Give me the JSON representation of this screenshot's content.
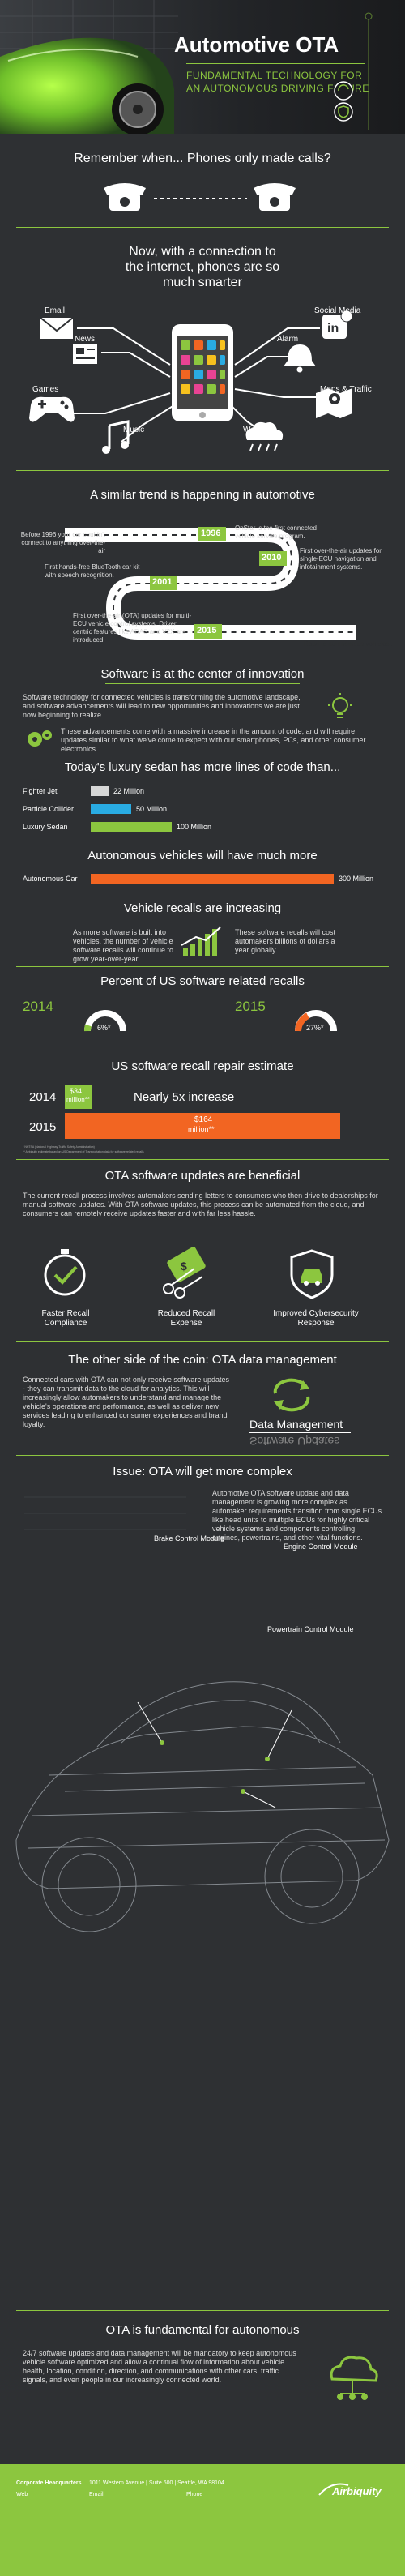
{
  "hero": {
    "title": "Automotive OTA",
    "subtitle_line1": "FUNDAMENTAL TECHNOLOGY FOR",
    "subtitle_line2": "AN AUTONOMOUS DRIVING FUTURE",
    "icons": [
      "refresh-check-icon",
      "shield-check-icon",
      "cloud-upload-icon",
      "car-icon"
    ]
  },
  "phones": {
    "title": "Remember when... Phones only made calls?"
  },
  "smart": {
    "title_line1": "Now, with a connection to",
    "title_line2": "the internet, phones are so",
    "title_line3": "much smarter",
    "labels": {
      "email": "Email",
      "news": "News",
      "games": "Games",
      "music": "Music",
      "social": "Social Media",
      "alarm": "Alarm",
      "maps": "Maps & Traffic",
      "weather": "Weather"
    }
  },
  "trend": {
    "title": "A similar trend is happening in automotive",
    "before": "Before 1996 your car couldn't connect to anything over-the-air",
    "y1996": "1996",
    "t1996": "OnStar is the first connected vehicle service program.",
    "y2001": "2001",
    "t2001": "First hands-free BlueTooth car kit with speech recognition.",
    "y2010": "2010",
    "t2010": "First over-the-air updates for single-ECU navigation and infotainment systems.",
    "y2015": "2015",
    "t2015": "First over-the-air (OTA) updates for multi-ECU vehicle control systems. Driver centric features like ADAS and V2X are introduced.",
    "road": "Road to autonomous vehicles..."
  },
  "innovation": {
    "title": "Software is at the center of innovation",
    "p1": "Software technology for connected vehicles is transforming the automotive landscape, and software advancements will lead to new opportunities and innovations we are just now beginning to realize.",
    "p2": "These advancements come with a massive increase in the amount of code, and will require updates similar to what we've come to expect with our smartphones, PCs, and other consumer electronics."
  },
  "lines": {
    "title": "Today's luxury sedan has more lines of code than...",
    "rows": [
      {
        "label": "Fighter Jet",
        "value": "22 Million"
      },
      {
        "label": "Particle Collider",
        "value": "50 Million"
      },
      {
        "label": "Luxury Sedan",
        "value": "100 Million"
      }
    ]
  },
  "autonomous": {
    "title": "Autonomous vehicles will have much more",
    "label": "Autonomous Car",
    "value": "300 Million"
  },
  "recalls": {
    "title": "Vehicle recalls are increasing",
    "left": "As more software is built into vehicles, the number of vehicle software recalls will continue to grow year-over-year",
    "right": "These software recalls will cost automakers billions of dollars a year globally"
  },
  "percent": {
    "title": "Percent of US software related recalls",
    "y2014": "2014",
    "v2014": "6%*",
    "y2015": "2015",
    "v2015": "27%*"
  },
  "repair": {
    "title": "US software recall repair estimate",
    "y2014": "2014",
    "v2014a": "$34",
    "v2014b": "million**",
    "mid": "Nearly 5x increase",
    "y2015": "2015",
    "v2015a": "$164",
    "v2015b": "million**",
    "foot1": "* NHTSA (National Highway Traffic Safety Administration)",
    "foot2": "** Airbiquity estimate based on US Department of Transportation data for software related recalls"
  },
  "beneficial": {
    "title": "OTA software updates are beneficial",
    "p": "The current recall process involves automakers sending letters to consumers who then drive to dealerships for manual software updates. With OTA software updates, this process can be automated from the cloud, and consumers can remotely receive updates faster and with far less hassle.",
    "b1a": "Faster Recall",
    "b1b": "Compliance",
    "b2a": "Reduced Recall",
    "b2b": "Expense",
    "b3a": "Improved Cybersecurity",
    "b3b": "Response"
  },
  "datamgmt": {
    "title": "The other side of the coin: OTA data management",
    "p": "Connected cars with OTA can not only receive software updates - they can transmit data to the cloud for analytics. This will increasingly allow automakers to understand and manage the vehicle's operations and performance, as well as deliver new services leading to enhanced consumer experiences and brand loyalty.",
    "label": "Data Management",
    "label_flip": "Software Updates"
  },
  "complex": {
    "title": "Issue: OTA will get more complex",
    "p": "Automotive OTA software update and data management is growing more complex as automaker requirements transition from single ECUs like head units to multiple ECUs for highly critical vehicle systems and components controlling engines, powertrains, and other vital functions.",
    "m1": "Brake Control Module",
    "m2": "Engine Control Module",
    "m3": "Powertrain Control Module"
  },
  "fundamental": {
    "title": "OTA is fundamental for autonomous",
    "p": "24/7 software updates and data management will be mandatory to keep autonomous vehicle software optimized and allow a continual flow of information about vehicle health, location, condition, direction, and communications with other cars, traffic signals, and even people in our increasingly connected world."
  },
  "footer": {
    "hq": "Corporate Headquarters",
    "addr": "1011 Western Avenue | Suite 600 | Seattle, WA 98104",
    "web": "Web",
    "email": "Email",
    "phone": "Phone",
    "brand": "Airbiquity"
  },
  "colors": {
    "accent": "#8cc63f",
    "orange": "#f26522",
    "bg": "#2e3033",
    "dark": "#232427"
  }
}
